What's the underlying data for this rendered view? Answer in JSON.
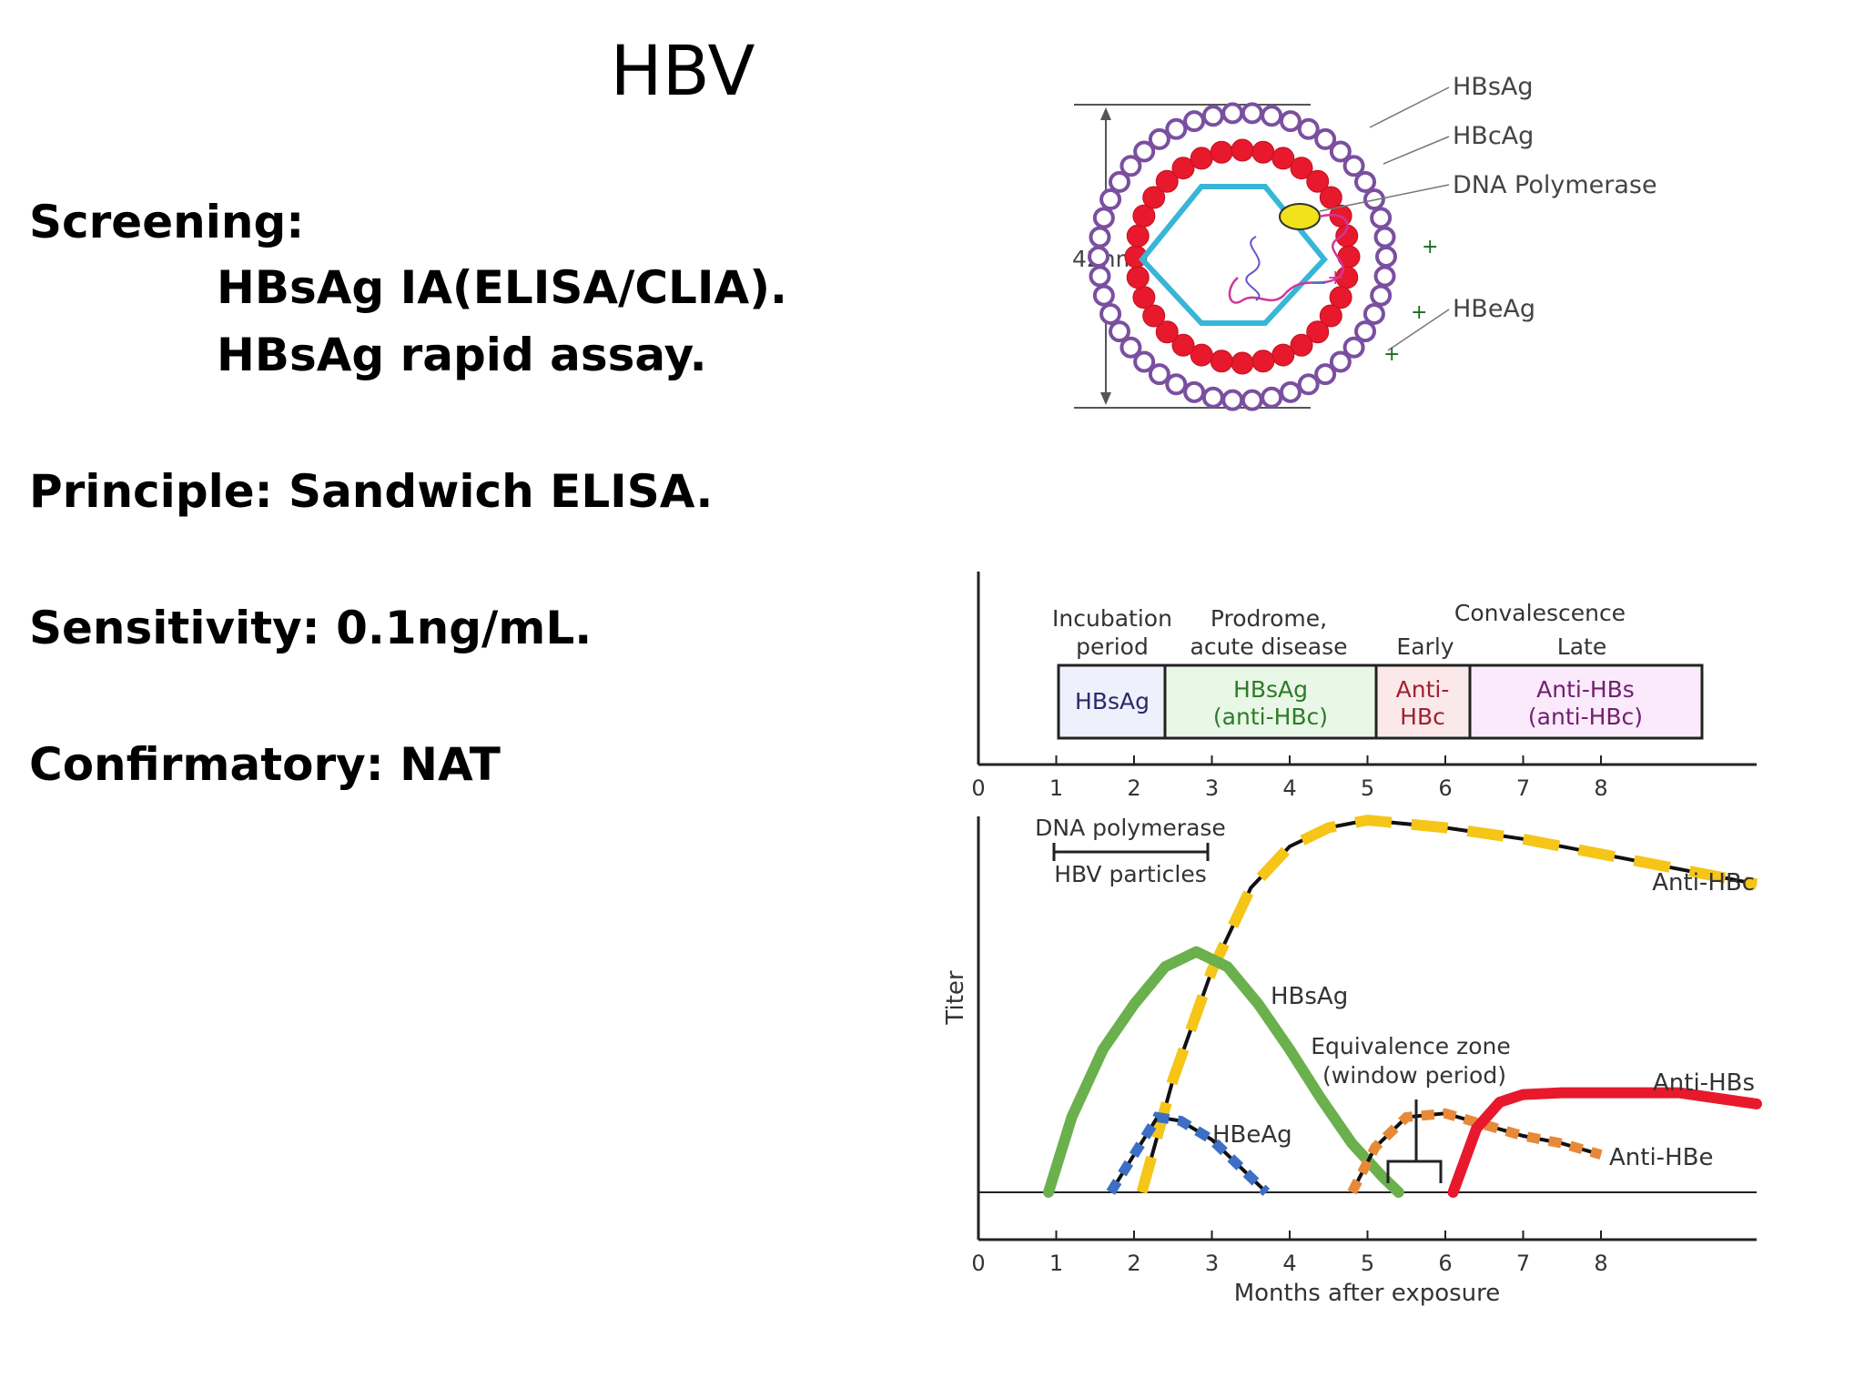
{
  "slide": {
    "title": "HBV",
    "screening_label": "Screening:",
    "screening_items": [
      "HBsAg IA(ELISA/CLIA).",
      "HBsAg rapid assay."
    ],
    "principle": "Principle: Sandwich ELISA.",
    "sensitivity": "Sensitivity: 0.1ng/mL.",
    "confirmatory": "Confirmatory: NAT"
  },
  "virion_diagram": {
    "size_label": "42nm",
    "labels": [
      "HBsAg",
      "HBcAg",
      "DNA Polymerase",
      "HBeAg"
    ],
    "colors": {
      "envelope": "#7a4fa0",
      "core": "#e8192c",
      "capsid": "#38b6d8",
      "polymerase": "#f2e21a"
    }
  },
  "phase_chart": {
    "phase_headers": {
      "incubation": [
        "Incubation",
        "period"
      ],
      "prodrome": [
        "Prodrome,",
        "acute disease"
      ],
      "convalescence": "Convalescence",
      "early": "Early",
      "late": "Late"
    },
    "phase_boxes": [
      {
        "lines": [
          "HBsAg"
        ],
        "color": "#eef0fb",
        "text_color": "#2a2a6a"
      },
      {
        "lines": [
          "HBsAg",
          "(anti-HBc)"
        ],
        "color": "#e9f7e6",
        "text_color": "#2f7a2a"
      },
      {
        "lines": [
          "Anti-",
          "HBc"
        ],
        "color": "#fbe9ea",
        "text_color": "#a02030"
      },
      {
        "lines": [
          "Anti-HBs",
          "(anti-HBc)"
        ],
        "color": "#fbeafb",
        "text_color": "#702070"
      }
    ],
    "axis_ticks": [
      "0",
      "1",
      "2",
      "3",
      "4",
      "5",
      "6",
      "7",
      "8"
    ]
  },
  "chart_data": {
    "type": "line",
    "xlabel": "Months after exposure",
    "ylabel": "Titer",
    "xlim": [
      0,
      10
    ],
    "x_ticks": [
      "0",
      "1",
      "2",
      "3",
      "4",
      "5",
      "6",
      "7",
      "8"
    ],
    "ylim": [
      0,
      100
    ],
    "annotations": {
      "dna_polymerase": "DNA polymerase",
      "hbv_particles": "HBV particles",
      "equivalence_zone": [
        "Equivalence zone",
        "(window period)"
      ]
    },
    "series": [
      {
        "name": "Anti-HBc",
        "color": "#f5c518",
        "style": "dashed-bicolor",
        "x": [
          2.1,
          2.5,
          3.0,
          3.5,
          4.0,
          4.5,
          5.0,
          6.0,
          7.0,
          8.0,
          9.0,
          10.0
        ],
        "y": [
          0,
          30,
          59,
          81,
          92,
          97,
          99,
          97,
          94,
          90,
          86,
          82
        ]
      },
      {
        "name": "HBsAg",
        "color": "#6ab04c",
        "style": "solid",
        "x": [
          0.9,
          1.2,
          1.6,
          2.0,
          2.4,
          2.8,
          3.2,
          3.6,
          4.0,
          4.4,
          4.8,
          5.2,
          5.4
        ],
        "y": [
          0,
          20,
          38,
          50,
          60,
          64,
          60,
          50,
          38,
          25,
          13,
          4,
          0
        ]
      },
      {
        "name": "HBeAg",
        "color": "#3d6fc4",
        "style": "dotted",
        "x": [
          1.7,
          2.0,
          2.3,
          2.6,
          3.0,
          3.4,
          3.7
        ],
        "y": [
          0,
          10,
          20,
          19,
          14,
          6,
          0
        ]
      },
      {
        "name": "Anti-HBe",
        "color": "#e8893a",
        "style": "dotted",
        "x": [
          4.8,
          5.1,
          5.5,
          6.0,
          6.5,
          7.0,
          7.5,
          8.0
        ],
        "y": [
          0,
          12,
          20,
          21,
          18,
          15,
          13,
          10
        ]
      },
      {
        "name": "Anti-HBs",
        "color": "#e8192c",
        "style": "solid",
        "x": [
          6.1,
          6.4,
          6.7,
          7.0,
          7.5,
          8.0,
          9.0,
          10.0
        ],
        "y": [
          0,
          17,
          24,
          26,
          26.5,
          26.5,
          26.5,
          23.5
        ]
      }
    ]
  }
}
